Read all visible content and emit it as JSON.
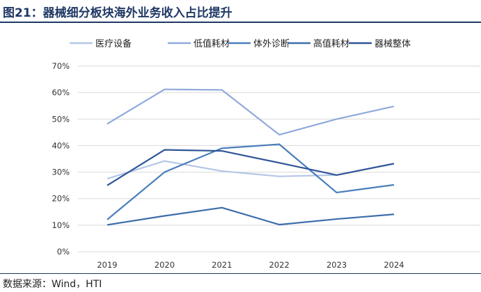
{
  "title": "图21：器械细分板块海外业务收入占比提升",
  "source": "数据来源：Wind，HTI",
  "chart_data": {
    "type": "line",
    "categories": [
      "2019",
      "2020",
      "2021",
      "2022",
      "2023",
      "2024"
    ],
    "ylim": [
      0,
      70
    ],
    "yticks": [
      "0%",
      "10%",
      "20%",
      "30%",
      "40%",
      "50%",
      "60%",
      "70%"
    ],
    "grid": true,
    "legend": "top",
    "series": [
      {
        "name": "医疗设备",
        "color": "#B4C7E7",
        "values": [
          27.5,
          34.2,
          30.4,
          28.4,
          28.9,
          null
        ]
      },
      {
        "name": "低值耗材",
        "color": "#8FAADC",
        "values": [
          48.2,
          61.2,
          61.0,
          44.1,
          50.0,
          54.8
        ]
      },
      {
        "name": "体外诊断",
        "color": "#4A7EBB",
        "values": [
          12.1,
          30.0,
          39.0,
          40.5,
          22.3,
          25.2
        ]
      },
      {
        "name": "高值耗材",
        "color": "#3D6DAA",
        "values": [
          10.1,
          13.5,
          16.6,
          10.2,
          12.3,
          14.1
        ]
      },
      {
        "name": "器械整体",
        "color": "#2F5597",
        "values": [
          25.0,
          38.4,
          38.0,
          33.5,
          28.9,
          33.2
        ]
      }
    ]
  }
}
